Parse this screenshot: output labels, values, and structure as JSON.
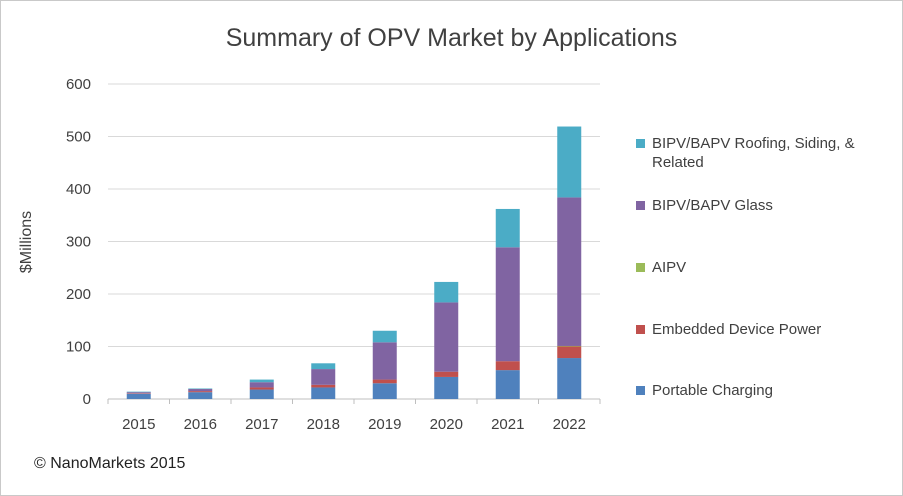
{
  "chart_data": {
    "type": "bar",
    "stacked": true,
    "title": "Summary of OPV Market by Applications",
    "xlabel": "",
    "ylabel": "$Millions",
    "ylim": [
      0,
      600
    ],
    "yticks": [
      "0",
      "100",
      "200",
      "300",
      "400",
      "500",
      "600"
    ],
    "categories": [
      "2015",
      "2016",
      "2017",
      "2018",
      "2019",
      "2020",
      "2021",
      "2022"
    ],
    "grid": true,
    "legend_position": "right",
    "series": [
      {
        "name": "Portable Charging",
        "color": "#4F81BD",
        "values": [
          10,
          13,
          18,
          22,
          30,
          42,
          55,
          78
        ]
      },
      {
        "name": "Embedded Device Power",
        "color": "#C0504D",
        "values": [
          1,
          2,
          4,
          5,
          7,
          10,
          17,
          22
        ]
      },
      {
        "name": "AIPV",
        "color": "#9BBB59",
        "values": [
          0,
          0,
          0,
          0,
          0,
          0,
          0,
          1
        ]
      },
      {
        "name": "BIPV/BAPV Glass",
        "color": "#8064A2",
        "values": [
          2,
          4,
          10,
          30,
          71,
          132,
          217,
          283
        ]
      },
      {
        "name": "BIPV/BAPV Roofing, Siding, & Related",
        "color": "#4BACC6",
        "values": [
          1,
          1,
          5,
          11,
          22,
          39,
          73,
          135
        ]
      }
    ]
  },
  "legend_order": [
    "BIPV/BAPV Roofing, Siding, & Related",
    "BIPV/BAPV Glass",
    "AIPV",
    "Embedded Device Power",
    "Portable Charging"
  ],
  "copyright": "© NanoMarkets 2015"
}
